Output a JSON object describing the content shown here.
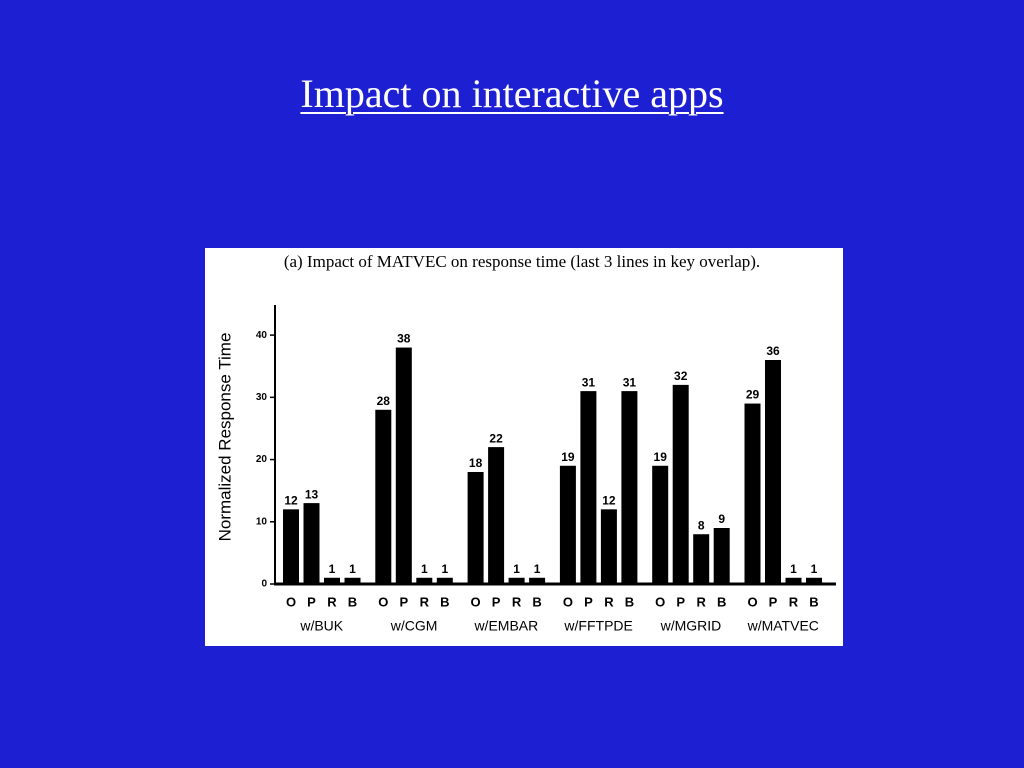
{
  "title": "Impact on interactive apps",
  "chart_data": {
    "type": "bar",
    "title": "(a) Impact of MATVEC on response time (last 3 lines in key overlap).",
    "y_label": "Normalized Response Time",
    "categories": [
      "w/BUK",
      "w/CGM",
      "w/EMBAR",
      "w/FFTPDE",
      "w/MGRID",
      "w/MATVEC"
    ],
    "series": [
      {
        "name": "O",
        "color": "#000000",
        "values": [
          12,
          28,
          18,
          19,
          19,
          29
        ]
      },
      {
        "name": "P",
        "color": "#000000",
        "values": [
          13,
          38,
          22,
          31,
          32,
          36
        ]
      },
      {
        "name": "R",
        "color": "#000000",
        "values": [
          1,
          1,
          1,
          12,
          8,
          1
        ]
      },
      {
        "name": "B",
        "color": "#000000",
        "values": [
          1,
          1,
          1,
          31,
          9,
          1
        ]
      }
    ],
    "ylim": [
      0,
      45
    ],
    "yticks": [
      0,
      10,
      20,
      30,
      40
    ]
  }
}
